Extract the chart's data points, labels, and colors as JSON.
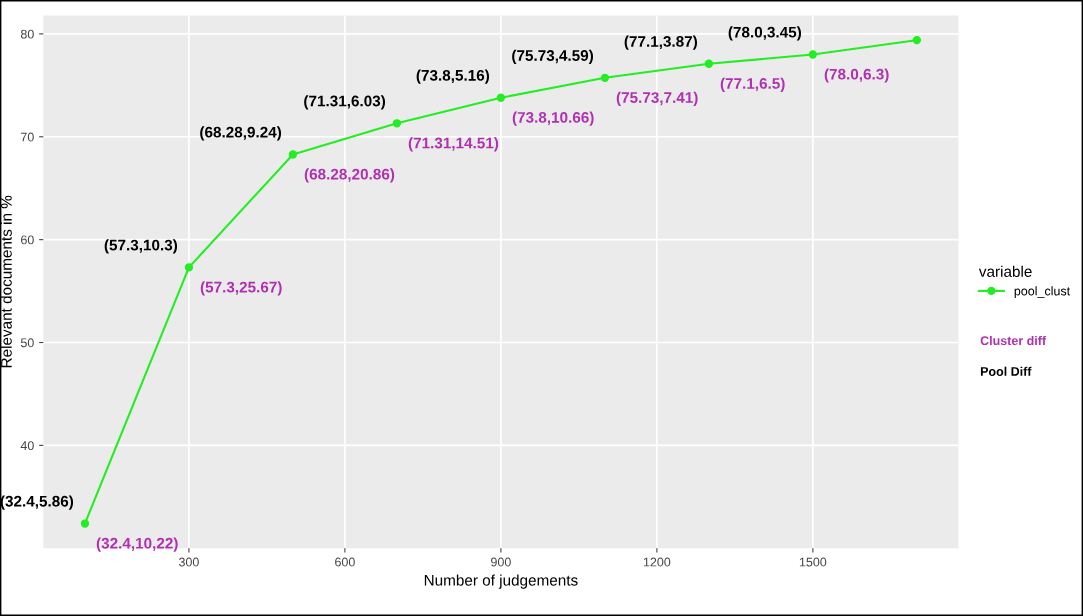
{
  "chart_data": {
    "type": "line",
    "xlabel": "Number of judgements",
    "ylabel": "Relevant documents in %",
    "x": [
      100,
      300,
      500,
      700,
      900,
      1100,
      1300,
      1500,
      1700
    ],
    "series": [
      {
        "name": "pool_clust",
        "color": "#22ee22",
        "values": [
          32.4,
          57.3,
          68.28,
          71.31,
          73.8,
          75.73,
          77.1,
          78.0,
          79.4
        ]
      }
    ],
    "xlim": [
      20,
      1780
    ],
    "xticks": [
      300,
      600,
      900,
      1200,
      1500
    ],
    "ylim": [
      30,
      81.8
    ],
    "yticks": [
      40,
      50,
      60,
      70,
      80
    ],
    "grid": true,
    "legend": "right",
    "legend_title": "variable",
    "marker": "circle",
    "line_style": "solid",
    "annotations": [
      {
        "text": "(32.4,5.86)",
        "x": 100,
        "y": 32.4
      },
      {
        "text": "(57.3,10.3)",
        "x": 300,
        "y": 57.3
      },
      {
        "text": "(68.28,9.24)",
        "x": 500,
        "y": 68.28
      },
      {
        "text": "(71.31,6.03)",
        "x": 700,
        "y": 71.31
      },
      {
        "text": "(73.8,5.16)",
        "x": 900,
        "y": 73.8
      },
      {
        "text": "(75.73,4.59)",
        "x": 1100,
        "y": 75.73
      },
      {
        "text": "(77.1,3.87)",
        "x": 1300,
        "y": 77.1
      },
      {
        "text": "(78.0,3.45)",
        "x": 1500,
        "y": 78.0
      },
      {
        "text": "(32.4,10,22)",
        "x": 100,
        "y": 32.4
      },
      {
        "text": "(57.3,25.67)",
        "x": 300,
        "y": 57.3
      },
      {
        "text": "(68.28,20.86)",
        "x": 500,
        "y": 68.28
      },
      {
        "text": "(71.31,14.51)",
        "x": 700,
        "y": 71.31
      },
      {
        "text": "(73.8,10.66)",
        "x": 900,
        "y": 73.8
      },
      {
        "text": "(75.73,7.41)",
        "x": 1100,
        "y": 75.73
      },
      {
        "text": "(77.1,6.5)",
        "x": 1300,
        "y": 77.1
      },
      {
        "text": "(78.0,6.3)",
        "x": 1500,
        "y": 78.0
      },
      "Cluster diff",
      "Pool Diff"
    ]
  }
}
